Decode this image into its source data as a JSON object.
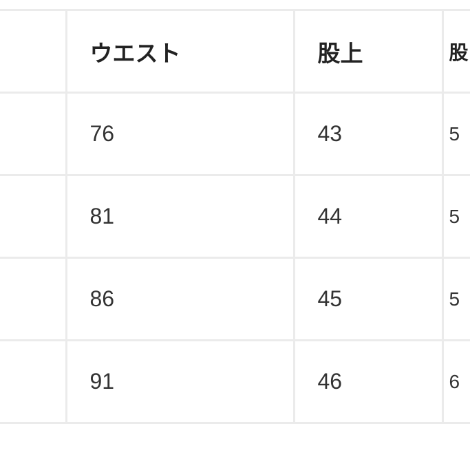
{
  "table": {
    "headers": [
      "",
      "ウエスト",
      "股上",
      "股"
    ],
    "rows": [
      [
        "",
        "76",
        "43",
        "5"
      ],
      [
        "",
        "81",
        "44",
        "5"
      ],
      [
        "",
        "86",
        "45",
        "5"
      ],
      [
        "",
        "91",
        "46",
        "6"
      ]
    ]
  }
}
